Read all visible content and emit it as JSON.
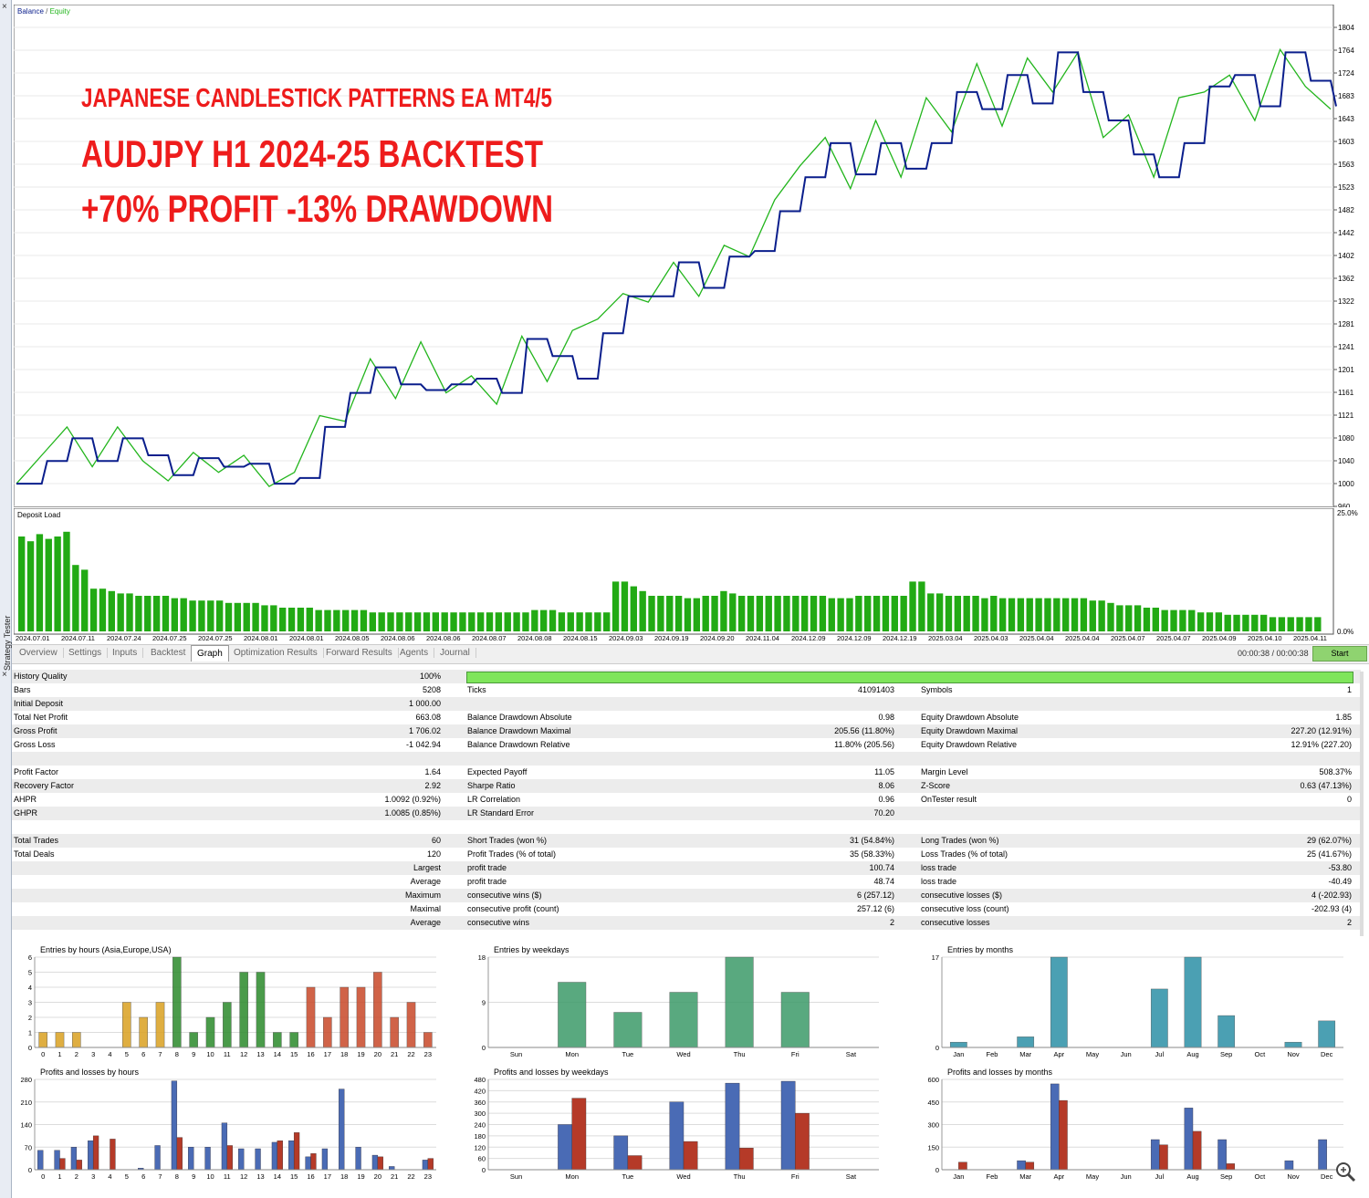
{
  "window": {
    "side_tab_label": "Strategy Tester",
    "close_glyph": "×"
  },
  "balance_chart": {
    "legend_balance": "Balance",
    "legend_sep": " / ",
    "legend_equity": "Equity",
    "overlay_lines": [
      "JAPANESE CANDLESTICK PATTERNS EA MT4/5",
      "AUDJPY H1 2024-25 BACKTEST",
      "+70% PROFIT  -13% DRAWDOWN"
    ],
    "y_ticks": [
      "1804",
      "1764",
      "1724",
      "1683",
      "1643",
      "1603",
      "1563",
      "1523",
      "1482",
      "1442",
      "1402",
      "1362",
      "1322",
      "1281",
      "1241",
      "1201",
      "1161",
      "1121",
      "1080",
      "1040",
      "1000",
      "960"
    ],
    "colors": {
      "balance": "#0a1e8c",
      "equity": "#22b51c",
      "overlay": "#ee1c1c"
    }
  },
  "chart_data": [
    {
      "type": "line",
      "title": "",
      "ylim": [
        960,
        1804
      ],
      "series": [
        {
          "name": "Balance",
          "values": [
            1000,
            1040,
            1080,
            1040,
            1080,
            1050,
            1015,
            1045,
            1030,
            1035,
            1000,
            1010,
            1100,
            1160,
            1205,
            1175,
            1165,
            1175,
            1185,
            1160,
            1255,
            1225,
            1185,
            1265,
            1330,
            1330,
            1390,
            1345,
            1400,
            1410,
            1480,
            1540,
            1600,
            1545,
            1600,
            1555,
            1600,
            1690,
            1660,
            1720,
            1670,
            1760,
            1690,
            1640,
            1580,
            1540,
            1600,
            1700,
            1720,
            1665,
            1760,
            1710,
            1665
          ]
        },
        {
          "name": "Equity",
          "values": [
            1000,
            1050,
            1100,
            1030,
            1100,
            1040,
            1005,
            1055,
            1020,
            1050,
            995,
            1020,
            1120,
            1110,
            1220,
            1150,
            1250,
            1160,
            1190,
            1140,
            1260,
            1180,
            1270,
            1290,
            1335,
            1320,
            1390,
            1330,
            1420,
            1400,
            1500,
            1560,
            1610,
            1520,
            1640,
            1540,
            1680,
            1620,
            1740,
            1630,
            1750,
            1690,
            1760,
            1610,
            1650,
            1540,
            1680,
            1690,
            1720,
            1640,
            1765,
            1700,
            1660
          ]
        }
      ]
    },
    {
      "type": "bar",
      "title": "Deposit Load",
      "ylim": [
        0,
        25
      ],
      "values": [
        20,
        19,
        20.5,
        19.5,
        20,
        21,
        14,
        13,
        9,
        9,
        8.5,
        8,
        8,
        7.5,
        7.5,
        7.5,
        7.5,
        7,
        7,
        6.5,
        6.5,
        6.5,
        6.5,
        6,
        6,
        6,
        6,
        5.5,
        5.5,
        5,
        5,
        5,
        5,
        4.5,
        4.5,
        4.5,
        4.5,
        4.5,
        4.5,
        4,
        4,
        4,
        4,
        4,
        4,
        4,
        4,
        4,
        4,
        4,
        4,
        4,
        4,
        4,
        4,
        4,
        4,
        4.5,
        4.5,
        4.5,
        4,
        4,
        4,
        4,
        4,
        4,
        10.5,
        10.5,
        9.5,
        8.5,
        7.5,
        7.5,
        7.5,
        7.5,
        7,
        7,
        7.5,
        7.5,
        8.5,
        8,
        7.5,
        7.5,
        7.5,
        7.5,
        7.5,
        7.5,
        7.5,
        7.5,
        7.5,
        7.5,
        7,
        7,
        7,
        7.5,
        7.5,
        7.5,
        7.5,
        7.5,
        7.5,
        10.5,
        10.5,
        8,
        8,
        7.5,
        7.5,
        7.5,
        7.5,
        7,
        7.5,
        7,
        7,
        7,
        7,
        7,
        7,
        7,
        7,
        7,
        7,
        6.5,
        6.5,
        6,
        5.5,
        5.5,
        5.5,
        5,
        5,
        4.5,
        4.5,
        4.5,
        4.5,
        4,
        4,
        4,
        3.5,
        3.5,
        3.5,
        3.5,
        3.5,
        3,
        3,
        3,
        3,
        3,
        3
      ]
    },
    {
      "type": "bar",
      "title": "Entries by hours (Asia,Europe,USA)",
      "ylim": [
        0,
        6
      ],
      "categories": [
        "0",
        "1",
        "2",
        "3",
        "4",
        "5",
        "6",
        "7",
        "8",
        "9",
        "10",
        "11",
        "12",
        "13",
        "14",
        "15",
        "16",
        "17",
        "18",
        "19",
        "20",
        "21",
        "22",
        "23"
      ],
      "values": [
        1,
        1,
        1,
        0,
        0,
        3,
        2,
        3,
        6,
        1,
        2,
        3,
        5,
        5,
        1,
        1,
        4,
        2,
        4,
        4,
        5,
        2,
        3,
        1
      ]
    },
    {
      "type": "bar",
      "title": "Entries by weekdays",
      "ylim": [
        0,
        18
      ],
      "categories": [
        "Sun",
        "Mon",
        "Tue",
        "Wed",
        "Thu",
        "Fri",
        "Sat"
      ],
      "values": [
        0,
        13,
        7,
        11,
        18,
        11,
        0
      ]
    },
    {
      "type": "bar",
      "title": "Entries by months",
      "ylim": [
        0,
        17
      ],
      "categories": [
        "Jan",
        "Feb",
        "Mar",
        "Apr",
        "May",
        "Jun",
        "Jul",
        "Aug",
        "Sep",
        "Oct",
        "Nov",
        "Dec"
      ],
      "values": [
        1,
        0,
        2,
        17,
        0,
        0,
        11,
        17,
        6,
        0,
        1,
        5
      ]
    },
    {
      "type": "bar",
      "title": "Profits and losses by hours",
      "ylim": [
        0,
        280
      ],
      "categories": [
        "0",
        "1",
        "2",
        "3",
        "4",
        "5",
        "6",
        "7",
        "8",
        "9",
        "10",
        "11",
        "12",
        "13",
        "14",
        "15",
        "16",
        "17",
        "18",
        "19",
        "20",
        "21",
        "22",
        "23"
      ],
      "series": [
        {
          "name": "profit",
          "values": [
            60,
            60,
            70,
            90,
            0,
            0,
            5,
            75,
            275,
            70,
            70,
            145,
            65,
            65,
            85,
            90,
            40,
            65,
            250,
            70,
            45,
            10,
            0,
            30
          ]
        },
        {
          "name": "loss",
          "values": [
            0,
            35,
            30,
            105,
            95,
            0,
            0,
            0,
            100,
            0,
            0,
            75,
            0,
            0,
            90,
            115,
            50,
            0,
            0,
            0,
            40,
            0,
            0,
            35
          ]
        }
      ]
    },
    {
      "type": "bar",
      "title": "Profits and losses by weekdays",
      "ylim": [
        0,
        480
      ],
      "categories": [
        "Sun",
        "Mon",
        "Tue",
        "Wed",
        "Thu",
        "Fri",
        "Sat"
      ],
      "series": [
        {
          "name": "profit",
          "values": [
            0,
            240,
            180,
            360,
            460,
            470,
            0
          ]
        },
        {
          "name": "loss",
          "values": [
            0,
            380,
            75,
            150,
            115,
            300,
            0
          ]
        }
      ]
    },
    {
      "type": "bar",
      "title": "Profits and losses by months",
      "ylim": [
        0,
        600
      ],
      "categories": [
        "Jan",
        "Feb",
        "Mar",
        "Apr",
        "May",
        "Jun",
        "Jul",
        "Aug",
        "Sep",
        "Oct",
        "Nov",
        "Dec"
      ],
      "series": [
        {
          "name": "profit",
          "values": [
            0,
            0,
            60,
            570,
            0,
            0,
            200,
            410,
            200,
            0,
            60,
            200
          ]
        },
        {
          "name": "loss",
          "values": [
            50,
            0,
            50,
            460,
            0,
            0,
            165,
            255,
            40,
            0,
            0,
            0
          ]
        }
      ]
    }
  ],
  "deposit_load": {
    "title": "Deposit Load",
    "y_top": "25.0%",
    "y_bottom": "0.0%",
    "x_dates": [
      "2024.07.01",
      "2024.07.11",
      "2024.07.24",
      "2024.07.25",
      "2024.07.25",
      "2024.08.01",
      "2024.08.01",
      "2024.08.05",
      "2024.08.06",
      "2024.08.06",
      "2024.08.07",
      "2024.08.08",
      "2024.08.15",
      "2024.09.03",
      "2024.09.19",
      "2024.09.20",
      "2024.11.04",
      "2024.12.09",
      "2024.12.09",
      "2024.12.19",
      "2025.03.04",
      "2025.04.03",
      "2025.04.04",
      "2025.04.04",
      "2025.04.07",
      "2025.04.07",
      "2025.04.09",
      "2025.04.10",
      "2025.04.11"
    ]
  },
  "tabs": [
    "Overview",
    "Settings",
    "Inputs",
    "Backtest",
    "Graph",
    "Optimization Results",
    "Forward Results",
    "Agents",
    "Journal"
  ],
  "active_tab": "Graph",
  "timer": "00:00:38 / 00:00:38",
  "start_label": "Start",
  "report": {
    "history_quality_label": "History Quality",
    "history_quality_value": "100%",
    "rows": [
      {
        "alt": false,
        "c1": "Bars",
        "v1": "5208",
        "c2": "Ticks",
        "v2": "41091403",
        "c3": "Symbols",
        "v3": "1"
      },
      {
        "alt": true,
        "c1": "Initial Deposit",
        "v1": "1 000.00",
        "c2": "",
        "v2": "",
        "c3": "",
        "v3": ""
      },
      {
        "alt": false,
        "c1": "Total Net Profit",
        "v1": "663.08",
        "c2": "Balance Drawdown Absolute",
        "v2": "0.98",
        "c3": "Equity Drawdown Absolute",
        "v3": "1.85"
      },
      {
        "alt": true,
        "c1": "Gross Profit",
        "v1": "1 706.02",
        "c2": "Balance Drawdown Maximal",
        "v2": "205.56 (11.80%)",
        "c3": "Equity Drawdown Maximal",
        "v3": "227.20 (12.91%)"
      },
      {
        "alt": false,
        "c1": "Gross Loss",
        "v1": "-1 042.94",
        "c2": "Balance Drawdown Relative",
        "v2": "11.80% (205.56)",
        "c3": "Equity Drawdown Relative",
        "v3": "12.91% (227.20)"
      },
      {
        "alt": true,
        "c1": "",
        "v1": "",
        "c2": "",
        "v2": "",
        "c3": "",
        "v3": ""
      },
      {
        "alt": false,
        "c1": "Profit Factor",
        "v1": "1.64",
        "c2": "Expected Payoff",
        "v2": "11.05",
        "c3": "Margin Level",
        "v3": "508.37%"
      },
      {
        "alt": true,
        "c1": "Recovery Factor",
        "v1": "2.92",
        "c2": "Sharpe Ratio",
        "v2": "8.06",
        "c3": "Z-Score",
        "v3": "0.63 (47.13%)"
      },
      {
        "alt": false,
        "c1": "AHPR",
        "v1": "1.0092 (0.92%)",
        "c2": "LR Correlation",
        "v2": "0.96",
        "c3": "OnTester result",
        "v3": "0"
      },
      {
        "alt": true,
        "c1": "GHPR",
        "v1": "1.0085 (0.85%)",
        "c2": "LR Standard Error",
        "v2": "70.20",
        "c3": "",
        "v3": ""
      },
      {
        "alt": false,
        "c1": "",
        "v1": "",
        "c2": "",
        "v2": "",
        "c3": "",
        "v3": ""
      },
      {
        "alt": true,
        "c1": "Total Trades",
        "v1": "60",
        "c2": "Short Trades (won %)",
        "v2": "31 (54.84%)",
        "c3": "Long Trades (won %)",
        "v3": "29 (62.07%)"
      },
      {
        "alt": false,
        "c1": "Total Deals",
        "v1": "120",
        "c2": "Profit Trades (% of total)",
        "v2": "35 (58.33%)",
        "c3": "Loss Trades (% of total)",
        "v3": "25 (41.67%)"
      },
      {
        "alt": true,
        "c1": "",
        "v1": "Largest",
        "c2": "profit trade",
        "v2": "100.74",
        "c3": "loss trade",
        "v3": "-53.80"
      },
      {
        "alt": false,
        "c1": "",
        "v1": "Average",
        "c2": "profit trade",
        "v2": "48.74",
        "c3": "loss trade",
        "v3": "-40.49"
      },
      {
        "alt": true,
        "c1": "",
        "v1": "Maximum",
        "c2": "consecutive wins ($)",
        "v2": "6 (257.12)",
        "c3": "consecutive losses ($)",
        "v3": "4 (-202.93)"
      },
      {
        "alt": false,
        "c1": "",
        "v1": "Maximal",
        "c2": "consecutive profit (count)",
        "v2": "257.12 (6)",
        "c3": "consecutive loss (count)",
        "v3": "-202.93 (4)"
      },
      {
        "alt": true,
        "c1": "",
        "v1": "Average",
        "c2": "consecutive wins",
        "v2": "2",
        "c3": "consecutive losses",
        "v3": "2"
      }
    ]
  },
  "mini_charts": {
    "entries_hours": {
      "title": "Entries by hours (Asia,Europe,USA)",
      "y_ticks": [
        "6",
        "5",
        "4",
        "3",
        "2",
        "1",
        "0"
      ]
    },
    "entries_weekdays": {
      "title": "Entries by weekdays",
      "y_ticks": [
        "18",
        "9",
        "0"
      ]
    },
    "entries_months": {
      "title": "Entries by months",
      "y_ticks": [
        "17",
        "0"
      ]
    },
    "pl_hours": {
      "title": "Profits and losses by hours",
      "y_ticks": [
        "280",
        "210",
        "140",
        "70",
        "0"
      ]
    },
    "pl_weekdays": {
      "title": "Profits and losses by weekdays",
      "y_ticks": [
        "480",
        "420",
        "360",
        "300",
        "240",
        "180",
        "120",
        "60",
        "0"
      ]
    },
    "pl_months": {
      "title": "Profits and losses by months",
      "y_ticks": [
        "600",
        "450",
        "300",
        "150",
        "0"
      ]
    }
  }
}
